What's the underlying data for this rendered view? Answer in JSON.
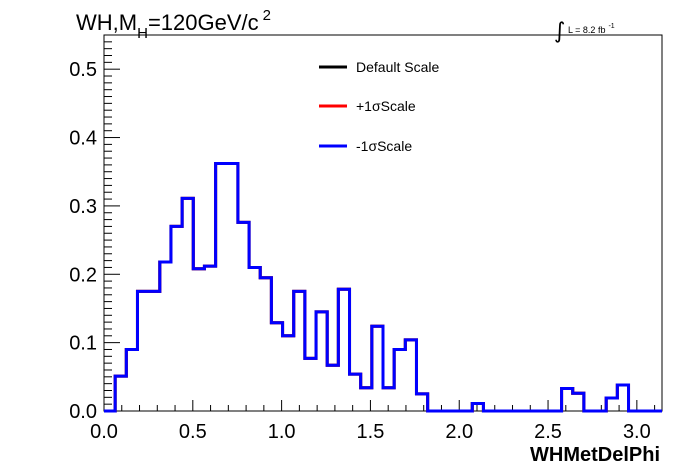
{
  "title": {
    "main": "WH,M",
    "subscript": "H",
    "rest": "=120GeV/c",
    "superscript": "2"
  },
  "lumi": {
    "integral": "∫",
    "text": "L = 8.2 fb",
    "superscript": "-1"
  },
  "chart_data": {
    "type": "line",
    "drawstyle": "step",
    "xlabel": "WHMetDelPhi",
    "ylabel": "",
    "xlim": [
      0.0,
      3.1416
    ],
    "ylim": [
      0.0,
      0.55
    ],
    "xticks": [
      0.0,
      0.5,
      1.0,
      1.5,
      2.0,
      2.5,
      3.0
    ],
    "xtick_labels": [
      "0.0",
      "0.5",
      "1.0",
      "1.5",
      "2.0",
      "2.5",
      "3.0"
    ],
    "yticks": [
      0.0,
      0.1,
      0.2,
      0.3,
      0.4,
      0.5
    ],
    "ytick_labels": [
      "0.0",
      "0.1",
      "0.2",
      "0.3",
      "0.4",
      "0.5"
    ],
    "grid": false,
    "legend_position": "top-center",
    "bin_edges": [
      0.0,
      0.0628,
      0.1257,
      0.1885,
      0.2513,
      0.3142,
      0.377,
      0.4398,
      0.5027,
      0.5655,
      0.6283,
      0.6912,
      0.754,
      0.8168,
      0.8796,
      0.9425,
      1.0053,
      1.0681,
      1.131,
      1.1938,
      1.2566,
      1.3195,
      1.3823,
      1.4451,
      1.508,
      1.5708,
      1.6336,
      1.6965,
      1.7593,
      1.8221,
      1.885,
      1.9478,
      2.0106,
      2.0735,
      2.1363,
      2.1991,
      2.2619,
      2.3248,
      2.3876,
      2.4504,
      2.5133,
      2.5761,
      2.6389,
      2.7018,
      2.7646,
      2.8274,
      2.8903,
      2.9531,
      3.0159,
      3.0788,
      3.1416
    ],
    "series": [
      {
        "name": "Default Scale",
        "color": "#000000",
        "values": [
          0.0,
          0.051,
          0.09,
          0.175,
          0.175,
          0.218,
          0.27,
          0.311,
          0.208,
          0.212,
          0.362,
          0.362,
          0.276,
          0.21,
          0.195,
          0.129,
          0.11,
          0.175,
          0.077,
          0.145,
          0.067,
          0.178,
          0.054,
          0.034,
          0.124,
          0.034,
          0.09,
          0.104,
          0.025,
          0.0,
          0.0,
          0.0,
          0.0,
          0.011,
          0.0,
          0.0,
          0.0,
          0.0,
          0.0,
          0.0,
          0.0,
          0.033,
          0.026,
          0.0,
          0.0,
          0.019,
          0.038,
          0.0,
          0.0,
          0.0
        ]
      },
      {
        "name": "+1σScale",
        "color": "#ff0000",
        "values": [
          0.0,
          0.051,
          0.09,
          0.175,
          0.175,
          0.218,
          0.27,
          0.311,
          0.208,
          0.212,
          0.362,
          0.362,
          0.276,
          0.21,
          0.195,
          0.129,
          0.11,
          0.175,
          0.077,
          0.145,
          0.067,
          0.178,
          0.054,
          0.034,
          0.124,
          0.034,
          0.09,
          0.104,
          0.025,
          0.0,
          0.0,
          0.0,
          0.0,
          0.011,
          0.0,
          0.0,
          0.0,
          0.0,
          0.0,
          0.0,
          0.0,
          0.033,
          0.026,
          0.0,
          0.0,
          0.019,
          0.038,
          0.0,
          0.0,
          0.0
        ]
      },
      {
        "name": "-1σScale",
        "color": "#0000ff",
        "values": [
          0.0,
          0.051,
          0.09,
          0.175,
          0.175,
          0.218,
          0.27,
          0.311,
          0.208,
          0.212,
          0.362,
          0.362,
          0.276,
          0.21,
          0.195,
          0.129,
          0.11,
          0.175,
          0.077,
          0.145,
          0.067,
          0.178,
          0.054,
          0.034,
          0.124,
          0.034,
          0.09,
          0.104,
          0.025,
          0.0,
          0.0,
          0.0,
          0.0,
          0.011,
          0.0,
          0.0,
          0.0,
          0.0,
          0.0,
          0.0,
          0.0,
          0.033,
          0.026,
          0.0,
          0.0,
          0.019,
          0.038,
          0.0,
          0.0,
          0.0
        ]
      }
    ]
  }
}
